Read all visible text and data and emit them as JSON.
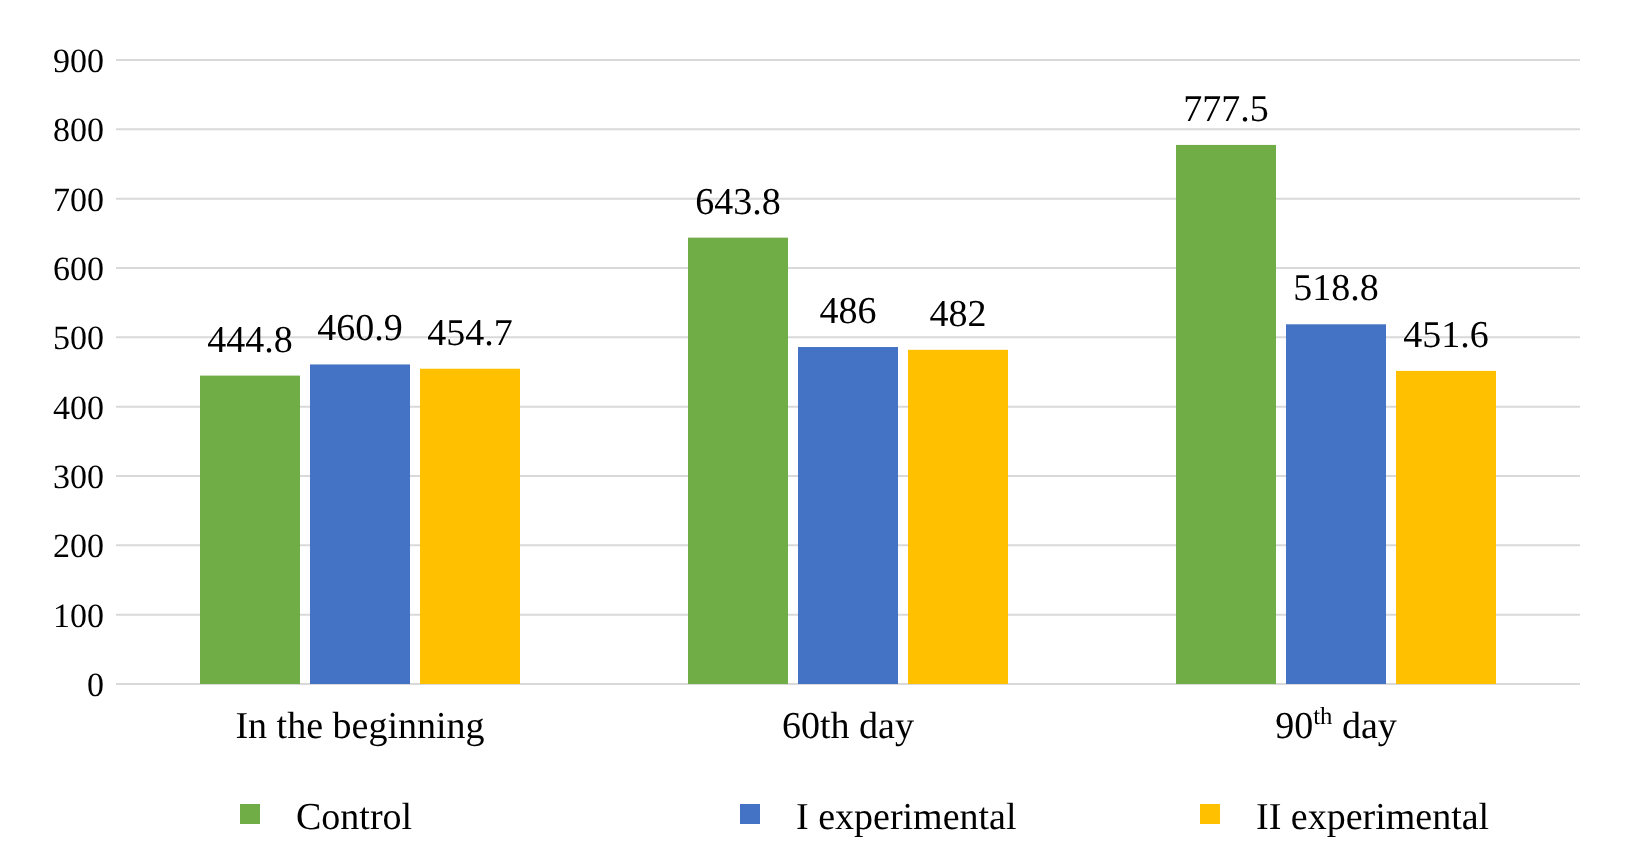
{
  "chart_data": {
    "type": "bar",
    "categories": [
      "In the beginning",
      "60th day",
      "90$^{th}$ day"
    ],
    "series": [
      {
        "name": "Control",
        "color": "#70ad47",
        "values": [
          444.8,
          643.8,
          777.5
        ]
      },
      {
        "name": "I experimental",
        "color": "#4472c4",
        "values": [
          460.9,
          486,
          518.8
        ]
      },
      {
        "name": "II experimental",
        "color": "#ffc000",
        "values": [
          454.7,
          482,
          451.6
        ]
      }
    ],
    "ylim": [
      0,
      900
    ],
    "yticks": [
      0,
      100,
      200,
      300,
      400,
      500,
      600,
      700,
      800,
      900
    ],
    "grid": "y",
    "legend": "bottom",
    "data_labels": true
  }
}
